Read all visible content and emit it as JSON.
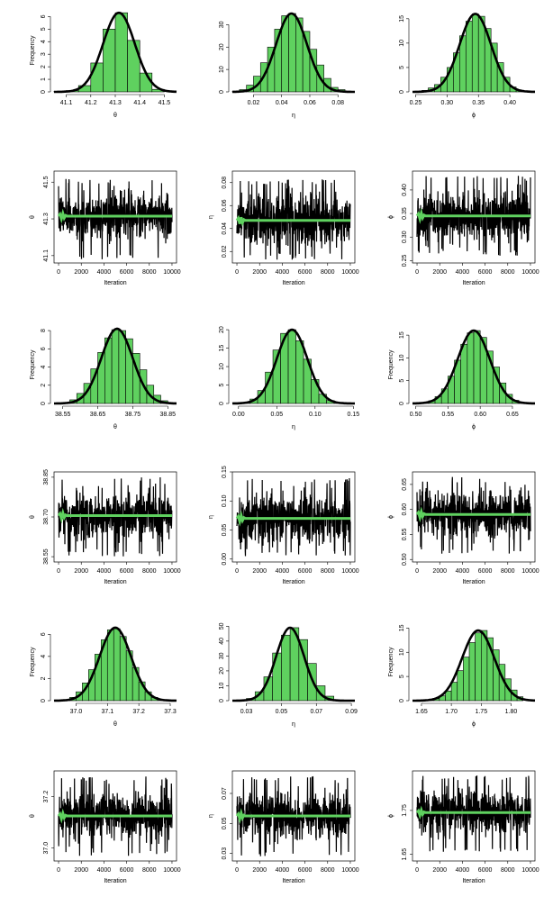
{
  "chart_data": [
    {
      "type": "histogram",
      "ylabel": "Frequency",
      "xlabel": "θ",
      "xticks": [
        "41.1",
        "41.2",
        "41.3",
        "41.4",
        "41.5"
      ],
      "xtick_values": [
        41.1,
        41.2,
        41.3,
        41.4,
        41.5
      ],
      "xlim": [
        41.05,
        41.55
      ],
      "yticks": [
        "0",
        "1",
        "2",
        "3",
        "4",
        "5",
        "6"
      ],
      "ylim": [
        0,
        6.6
      ],
      "bins": [
        41.05,
        41.1,
        41.15,
        41.2,
        41.25,
        41.3,
        41.35,
        41.4,
        41.45,
        41.5
      ],
      "frequencies": [
        0.05,
        0.1,
        0.5,
        2.3,
        5.0,
        6.3,
        4.1,
        1.5,
        0.2
      ],
      "density": {
        "mean": 41.315,
        "sd": 0.065,
        "peak": 6.3
      },
      "bar_color": "#5fd15f"
    },
    {
      "type": "histogram",
      "ylabel": "",
      "xlabel": "η",
      "xticks": [
        "0.02",
        "0.04",
        "0.06",
        "0.08"
      ],
      "xtick_values": [
        0.02,
        0.04,
        0.06,
        0.08
      ],
      "xlim": [
        0.005,
        0.092
      ],
      "yticks": [
        "0",
        "10",
        "20",
        "30"
      ],
      "ylim": [
        0,
        37
      ],
      "bins": [
        0.005,
        0.01,
        0.015,
        0.02,
        0.025,
        0.03,
        0.035,
        0.04,
        0.045,
        0.05,
        0.055,
        0.06,
        0.065,
        0.07,
        0.075,
        0.08,
        0.085,
        0.09
      ],
      "frequencies": [
        0.2,
        1,
        3,
        7,
        13,
        20,
        28,
        34,
        35,
        33,
        27,
        19,
        12,
        6,
        2,
        1,
        0.3
      ],
      "density": {
        "mean": 0.047,
        "sd": 0.011,
        "peak": 35
      },
      "bar_color": "#5fd15f"
    },
    {
      "type": "histogram",
      "ylabel": "",
      "xlabel": "ϕ",
      "xticks": [
        "0.25",
        "0.30",
        "0.35",
        "0.40"
      ],
      "xtick_values": [
        0.25,
        0.3,
        0.35,
        0.4
      ],
      "xlim": [
        0.245,
        0.44
      ],
      "yticks": [
        "0",
        "5",
        "10",
        "15"
      ],
      "ylim": [
        0,
        17
      ],
      "bins": [
        0.25,
        0.26,
        0.27,
        0.28,
        0.29,
        0.3,
        0.31,
        0.32,
        0.33,
        0.34,
        0.35,
        0.36,
        0.37,
        0.38,
        0.39,
        0.4,
        0.41,
        0.42
      ],
      "frequencies": [
        0.1,
        0.3,
        0.8,
        1.5,
        3,
        5,
        8,
        11.5,
        14.5,
        16,
        15.5,
        13,
        10,
        6,
        3,
        1,
        0.3
      ],
      "density": {
        "mean": 0.345,
        "sd": 0.025,
        "peak": 16
      },
      "bar_color": "#5fd15f"
    },
    {
      "type": "trace",
      "ylabel": "θ",
      "xlabel": "Iteration",
      "xticks": [
        "0",
        "2000",
        "4000",
        "6000",
        "8000",
        "10000"
      ],
      "xtick_values": [
        0,
        2000,
        4000,
        6000,
        8000,
        10000
      ],
      "xlim": [
        -400,
        10400
      ],
      "yticks": [
        "41.1",
        "41.3",
        "41.5"
      ],
      "ytick_values": [
        41.1,
        41.3,
        41.5
      ],
      "ylim": [
        41.06,
        41.56
      ],
      "trace": {
        "mean": 41.315,
        "half_width": 0.14,
        "spike_max": 41.52,
        "spike_min": 41.08
      },
      "running_mean": {
        "value": 41.315,
        "color": "#5fd15f"
      }
    },
    {
      "type": "trace",
      "ylabel": "η",
      "xlabel": "Iteration",
      "xticks": [
        "0",
        "2000",
        "4000",
        "6000",
        "8000",
        "10000"
      ],
      "xtick_values": [
        0,
        2000,
        4000,
        6000,
        8000,
        10000
      ],
      "xlim": [
        -400,
        10400
      ],
      "yticks": [
        "0.02",
        "0.04",
        "0.06",
        "0.08"
      ],
      "ytick_values": [
        0.02,
        0.04,
        0.06,
        0.08
      ],
      "ylim": [
        0.01,
        0.09
      ],
      "trace": {
        "mean": 0.047,
        "half_width": 0.027,
        "spike_max": 0.083,
        "spike_min": 0.013
      },
      "running_mean": {
        "value": 0.047,
        "color": "#5fd15f"
      }
    },
    {
      "type": "trace",
      "ylabel": "ϕ",
      "xlabel": "Iteration",
      "xticks": [
        "0",
        "2000",
        "4000",
        "6000",
        "8000",
        "10000"
      ],
      "xtick_values": [
        0,
        2000,
        4000,
        6000,
        8000,
        10000
      ],
      "xlim": [
        -400,
        10400
      ],
      "yticks": [
        "0.25",
        "0.30",
        "0.35",
        "0.40"
      ],
      "ytick_values": [
        0.25,
        0.3,
        0.35,
        0.4
      ],
      "ylim": [
        0.245,
        0.44
      ],
      "trace": {
        "mean": 0.345,
        "half_width": 0.06,
        "spike_max": 0.43,
        "spike_min": 0.26
      },
      "running_mean": {
        "value": 0.345,
        "color": "#5fd15f"
      }
    },
    {
      "type": "histogram",
      "ylabel": "Frequency",
      "xlabel": "θ",
      "xticks": [
        "38.55",
        "38.65",
        "38.75",
        "38.85"
      ],
      "xtick_values": [
        38.55,
        38.65,
        38.75,
        38.85
      ],
      "xlim": [
        38.525,
        38.875
      ],
      "yticks": [
        "0",
        "2",
        "4",
        "6",
        "8"
      ],
      "ylim": [
        0,
        8.5
      ],
      "bins": [
        38.55,
        38.57,
        38.59,
        38.61,
        38.63,
        38.65,
        38.67,
        38.69,
        38.71,
        38.73,
        38.75,
        38.77,
        38.79,
        38.81,
        38.83,
        38.85
      ],
      "frequencies": [
        0.1,
        0.4,
        1.1,
        2.2,
        3.8,
        5.6,
        7.2,
        8.1,
        8.0,
        7.1,
        5.5,
        3.7,
        2,
        0.9,
        0.3
      ],
      "density": {
        "mean": 38.705,
        "sd": 0.045,
        "peak": 8.2
      },
      "bar_color": "#5fd15f"
    },
    {
      "type": "histogram",
      "ylabel": "",
      "xlabel": "η",
      "xticks": [
        "0.00",
        "0.05",
        "0.10",
        "0.15"
      ],
      "xtick_values": [
        0,
        0.05,
        0.1,
        0.15
      ],
      "xlim": [
        -0.008,
        0.152
      ],
      "yticks": [
        "0",
        "5",
        "10",
        "15",
        "20"
      ],
      "ylim": [
        0,
        21
      ],
      "bins": [
        0.005,
        0.015,
        0.025,
        0.035,
        0.045,
        0.055,
        0.065,
        0.075,
        0.085,
        0.095,
        0.105,
        0.115,
        0.125,
        0.135
      ],
      "frequencies": [
        0.3,
        1.2,
        3.5,
        8.5,
        14.5,
        19,
        20,
        17,
        12,
        6.5,
        2.5,
        0.8,
        0.2
      ],
      "density": {
        "mean": 0.07,
        "sd": 0.02,
        "peak": 20
      },
      "bar_color": "#5fd15f"
    },
    {
      "type": "histogram",
      "ylabel": "Frequency",
      "xlabel": "ϕ",
      "xticks": [
        "0.50",
        "0.55",
        "0.60",
        "0.65"
      ],
      "xtick_values": [
        0.5,
        0.55,
        0.6,
        0.65
      ],
      "xlim": [
        0.495,
        0.685
      ],
      "yticks": [
        "0",
        "5",
        "10",
        "15"
      ],
      "ylim": [
        0,
        17
      ],
      "bins": [
        0.51,
        0.52,
        0.53,
        0.54,
        0.55,
        0.56,
        0.57,
        0.58,
        0.59,
        0.6,
        0.61,
        0.62,
        0.63,
        0.64,
        0.65,
        0.66,
        0.67
      ],
      "frequencies": [
        0.2,
        0.6,
        1.5,
        3.2,
        6,
        9.5,
        13,
        15.5,
        16,
        14.5,
        11.5,
        8,
        4.5,
        2,
        0.7,
        0.2
      ],
      "density": {
        "mean": 0.59,
        "sd": 0.025,
        "peak": 16
      },
      "bar_color": "#5fd15f"
    },
    {
      "type": "trace",
      "ylabel": "θ",
      "xlabel": "Iteration",
      "xticks": [
        "0",
        "2000",
        "4000",
        "6000",
        "8000",
        "10000"
      ],
      "xtick_values": [
        0,
        2000,
        4000,
        6000,
        8000,
        10000
      ],
      "xlim": [
        -400,
        10400
      ],
      "yticks": [
        "38.55",
        "38.70",
        "38.85"
      ],
      "ytick_values": [
        38.55,
        38.7,
        38.85
      ],
      "ylim": [
        38.53,
        38.87
      ],
      "trace": {
        "mean": 38.705,
        "half_width": 0.1,
        "spike_max": 38.85,
        "spike_min": 38.55
      },
      "running_mean": {
        "value": 38.705,
        "color": "#5fd15f"
      }
    },
    {
      "type": "trace",
      "ylabel": "η",
      "xlabel": "Iteration",
      "xticks": [
        "0",
        "2000",
        "4000",
        "6000",
        "8000",
        "10000"
      ],
      "xtick_values": [
        0,
        2000,
        4000,
        6000,
        8000,
        10000
      ],
      "xlim": [
        -400,
        10400
      ],
      "yticks": [
        "0.00",
        "0.05",
        "0.10",
        "0.15"
      ],
      "ytick_values": [
        0,
        0.05,
        0.1,
        0.15
      ],
      "ylim": [
        -0.005,
        0.15
      ],
      "trace": {
        "mean": 0.07,
        "half_width": 0.048,
        "spike_max": 0.14,
        "spike_min": 0.005
      },
      "running_mean": {
        "value": 0.07,
        "color": "#5fd15f"
      }
    },
    {
      "type": "trace",
      "ylabel": "ϕ",
      "xlabel": "Iteration",
      "xticks": [
        "0",
        "2000",
        "4000",
        "6000",
        "8000",
        "10000"
      ],
      "xtick_values": [
        0,
        2000,
        4000,
        6000,
        8000,
        10000
      ],
      "xlim": [
        -400,
        10400
      ],
      "yticks": [
        "0.50",
        "0.55",
        "0.60",
        "0.65"
      ],
      "ytick_values": [
        0.5,
        0.55,
        0.6,
        0.65
      ],
      "ylim": [
        0.495,
        0.675
      ],
      "trace": {
        "mean": 0.59,
        "half_width": 0.055,
        "spike_max": 0.665,
        "spike_min": 0.51
      },
      "running_mean": {
        "value": 0.59,
        "color": "#5fd15f"
      }
    },
    {
      "type": "histogram",
      "ylabel": "Frequency",
      "xlabel": "θ",
      "xticks": [
        "37.0",
        "37.1",
        "37.2",
        "37.3"
      ],
      "xtick_values": [
        37.0,
        37.1,
        37.2,
        37.3
      ],
      "xlim": [
        36.93,
        37.32
      ],
      "yticks": [
        "0",
        "2",
        "4",
        "6"
      ],
      "ylim": [
        0,
        7
      ],
      "bins": [
        36.96,
        36.98,
        37.0,
        37.02,
        37.04,
        37.06,
        37.08,
        37.1,
        37.12,
        37.14,
        37.16,
        37.18,
        37.2,
        37.22,
        37.24,
        37.26,
        37.28
      ],
      "frequencies": [
        0.1,
        0.3,
        0.8,
        1.6,
        2.8,
        4.2,
        5.5,
        6.4,
        6.5,
        5.8,
        4.5,
        3.0,
        1.7,
        0.8,
        0.3,
        0.1
      ],
      "density": {
        "mean": 37.125,
        "sd": 0.05,
        "peak": 6.6
      },
      "bar_color": "#5fd15f"
    },
    {
      "type": "histogram",
      "ylabel": "",
      "xlabel": "η",
      "xticks": [
        "0.03",
        "0.05",
        "0.07",
        "0.09"
      ],
      "xtick_values": [
        0.03,
        0.05,
        0.07,
        0.09
      ],
      "xlim": [
        0.022,
        0.092
      ],
      "yticks": [
        "0",
        "10",
        "20",
        "30",
        "40",
        "50"
      ],
      "ylim": [
        0,
        52
      ],
      "bins": [
        0.03,
        0.035,
        0.04,
        0.045,
        0.05,
        0.055,
        0.06,
        0.065,
        0.07,
        0.075,
        0.08
      ],
      "frequencies": [
        1.5,
        6,
        16,
        32,
        44,
        49,
        41,
        25,
        10,
        3
      ],
      "density": {
        "mean": 0.055,
        "sd": 0.008,
        "peak": 49
      },
      "bar_color": "#5fd15f"
    },
    {
      "type": "histogram",
      "ylabel": "Frequency",
      "xlabel": "ϕ",
      "xticks": [
        "1.65",
        "1.70",
        "1.75",
        "1.80"
      ],
      "xtick_values": [
        1.65,
        1.7,
        1.75,
        1.8
      ],
      "xlim": [
        1.635,
        1.84
      ],
      "yticks": [
        "0",
        "5",
        "10",
        "15"
      ],
      "ylim": [
        0,
        16
      ],
      "bins": [
        1.66,
        1.67,
        1.68,
        1.69,
        1.7,
        1.71,
        1.72,
        1.73,
        1.74,
        1.75,
        1.76,
        1.77,
        1.78,
        1.79,
        1.8,
        1.81,
        1.82
      ],
      "frequencies": [
        0.1,
        0.4,
        1,
        2,
        3.8,
        6.2,
        9,
        12,
        14,
        14.5,
        13,
        10.5,
        7.5,
        4.5,
        2.2,
        0.8
      ],
      "density": {
        "mean": 1.745,
        "sd": 0.027,
        "peak": 14.5
      },
      "bar_color": "#5fd15f"
    },
    {
      "type": "trace",
      "ylabel": "θ",
      "xlabel": "Iteration",
      "xticks": [
        "0",
        "2000",
        "4000",
        "6000",
        "8000",
        "10000"
      ],
      "xtick_values": [
        0,
        2000,
        4000,
        6000,
        8000,
        10000
      ],
      "xlim": [
        -400,
        10400
      ],
      "yticks": [
        "37.0",
        "37.2"
      ],
      "ytick_values": [
        37.0,
        37.2
      ],
      "ylim": [
        36.95,
        37.3
      ],
      "trace": {
        "mean": 37.125,
        "half_width": 0.1,
        "spike_max": 37.28,
        "spike_min": 36.97
      },
      "running_mean": {
        "value": 37.125,
        "color": "#5fd15f"
      }
    },
    {
      "type": "trace",
      "ylabel": "η",
      "xlabel": "Iteration",
      "xticks": [
        "0",
        "2000",
        "4000",
        "6000",
        "8000",
        "10000"
      ],
      "xtick_values": [
        0,
        2000,
        4000,
        6000,
        8000,
        10000
      ],
      "xlim": [
        -400,
        10400
      ],
      "yticks": [
        "0.03",
        "0.05",
        "0.07"
      ],
      "ytick_values": [
        0.03,
        0.05,
        0.07
      ],
      "ylim": [
        0.025,
        0.085
      ],
      "trace": {
        "mean": 0.055,
        "half_width": 0.018,
        "spike_max": 0.082,
        "spike_min": 0.028
      },
      "running_mean": {
        "value": 0.055,
        "color": "#5fd15f"
      }
    },
    {
      "type": "trace",
      "ylabel": "ϕ",
      "xlabel": "Iteration",
      "xticks": [
        "0",
        "2000",
        "4000",
        "6000",
        "8000",
        "10000"
      ],
      "xtick_values": [
        0,
        2000,
        4000,
        6000,
        8000,
        10000
      ],
      "xlim": [
        -400,
        10400
      ],
      "yticks": [
        "1.65",
        "1.75"
      ],
      "ytick_values": [
        1.65,
        1.75
      ],
      "ylim": [
        1.635,
        1.84
      ],
      "trace": {
        "mean": 1.745,
        "half_width": 0.055,
        "spike_max": 1.83,
        "spike_min": 1.655
      },
      "running_mean": {
        "value": 1.745,
        "color": "#5fd15f"
      }
    }
  ]
}
